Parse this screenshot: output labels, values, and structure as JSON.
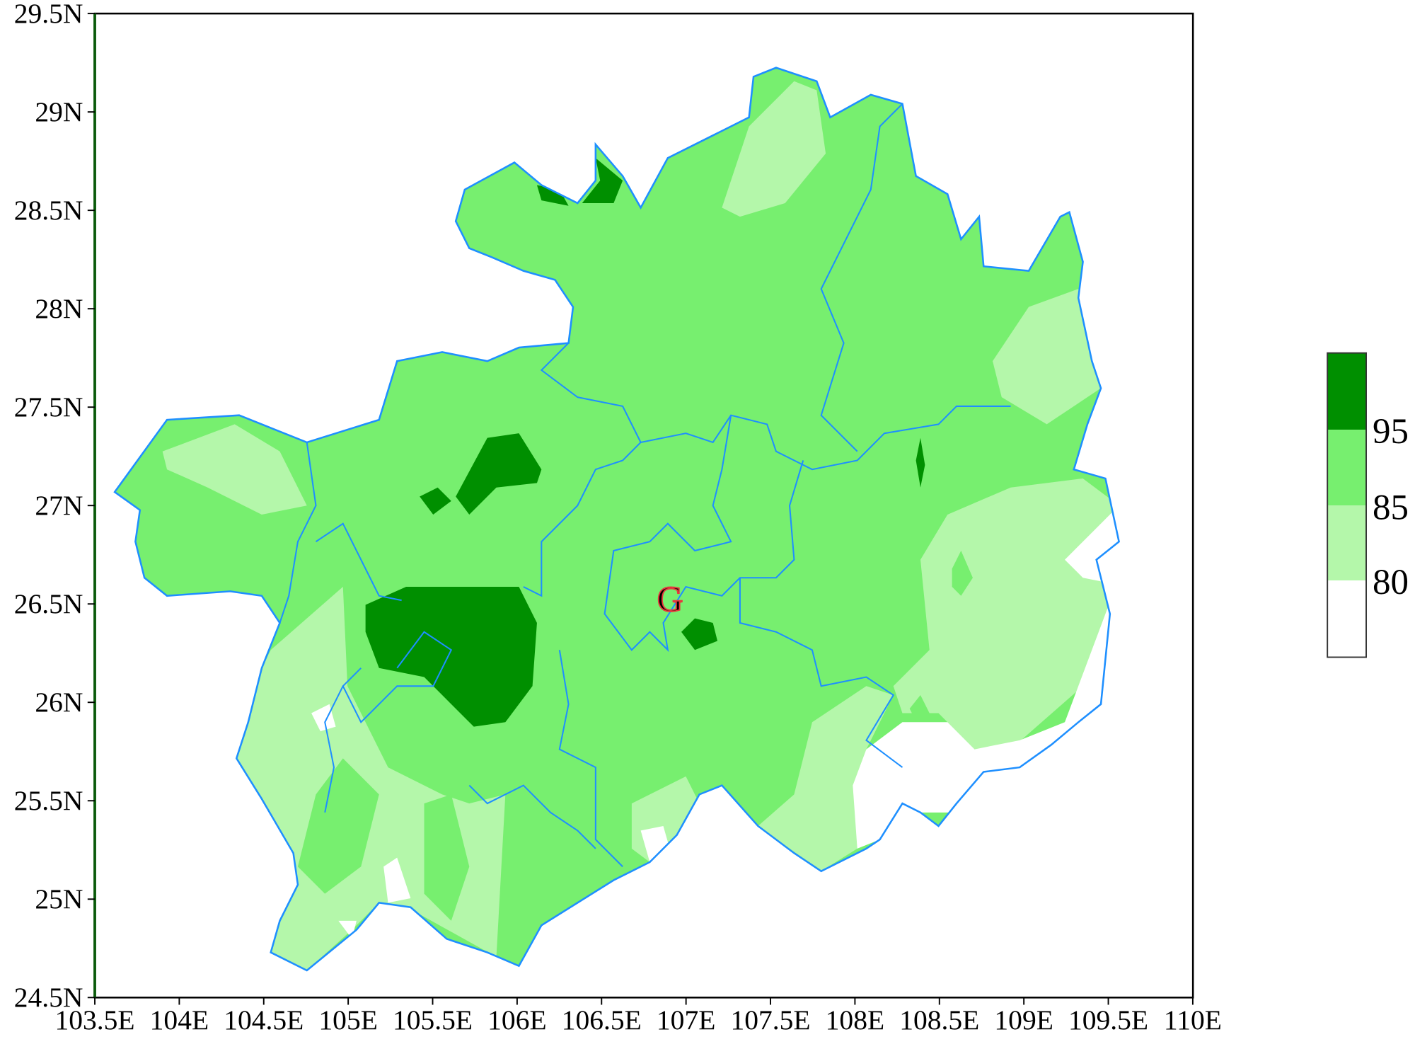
{
  "map": {
    "x_ticks": [
      "103.5E",
      "104E",
      "104.5E",
      "105E",
      "105.5E",
      "106E",
      "106.5E",
      "107E",
      "107.5E",
      "108E",
      "108.5E",
      "109E",
      "109.5E",
      "110E"
    ],
    "y_ticks": [
      "29.5N",
      "29N",
      "28.5N",
      "28N",
      "27.5N",
      "27N",
      "26.5N",
      "26N",
      "25.5N",
      "25N",
      "24.5N"
    ],
    "lon_range": [
      103.5,
      110
    ],
    "lat_range": [
      24.5,
      29.5
    ],
    "marker_label": "G",
    "marker_color": "#e8383d",
    "boundary_color": "#1e8fff"
  },
  "legend": {
    "levels": [
      "95",
      "85",
      "80"
    ],
    "colors": {
      "above_95": "#008f00",
      "85_95": "#77ef6f",
      "80_85": "#b4f7aa",
      "below_80": "#ffffff"
    }
  }
}
